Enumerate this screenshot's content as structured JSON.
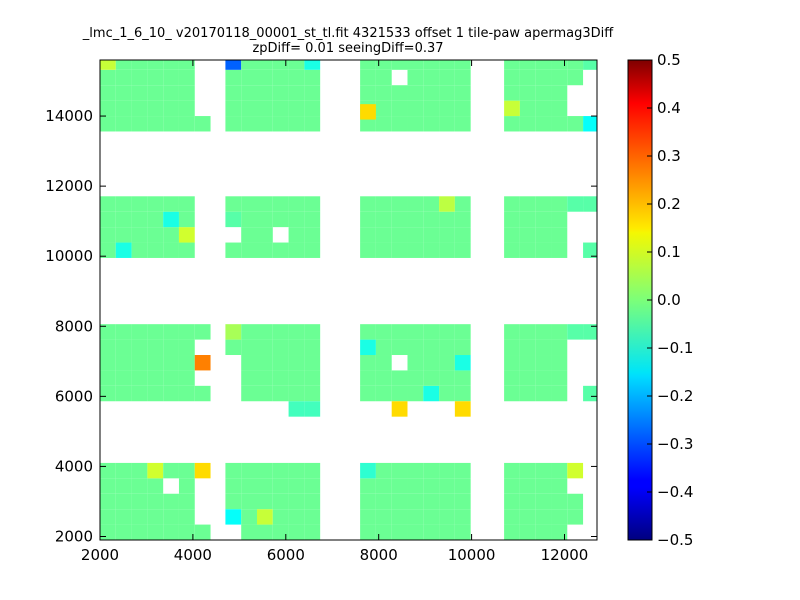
{
  "chart_data": {
    "type": "heatmap",
    "title_line1": "_lmc_1_6_10_ v20170118_00001_st_tl.fit 4321533 offset 1 tile-paw apermag3Diff",
    "title_line2": "zpDiff= 0.01 seeingDiff=0.37",
    "xlim": [
      2000,
      12700
    ],
    "ylim": [
      1900,
      15600
    ],
    "xticks": [
      2000,
      4000,
      6000,
      8000,
      10000,
      12000
    ],
    "yticks": [
      2000,
      4000,
      6000,
      8000,
      10000,
      12000,
      14000
    ],
    "cell_size": {
      "dx": 340,
      "dy": 440
    },
    "colorbar": {
      "range": [
        -0.5,
        0.5
      ],
      "ticks": [
        "0.5",
        "0.4",
        "0.3",
        "0.2",
        "0.1",
        "0.0",
        "−0.1",
        "−0.2",
        "−0.3",
        "−0.4",
        "−0.5"
      ]
    },
    "blocks": {
      "x_columns": [
        [
          2000,
          2340,
          2680,
          3020,
          3360,
          3700
        ],
        [
          4700,
          5040,
          5380,
          5720,
          6060,
          6400
        ],
        [
          7600,
          7940,
          8280,
          8620,
          8960,
          9300,
          9640
        ],
        [
          10700,
          11040,
          11380,
          11720
        ]
      ],
      "y_rows": [
        [
          1900,
          2340,
          2780,
          3220,
          3660
        ],
        [
          5860,
          6300,
          6740,
          7180,
          7620
        ],
        [
          9950,
          10390,
          10830,
          11270
        ],
        [
          13560,
          14000,
          14440,
          14880,
          15320
        ]
      ],
      "base_value": -0.02
    },
    "special_cells": [
      {
        "x": 4040,
        "y": 6740,
        "value": 0.25
      },
      {
        "x": 4040,
        "y": 3660,
        "value": 0.16
      },
      {
        "x": 8280,
        "y": 5420,
        "value": 0.16
      },
      {
        "x": 9640,
        "y": 5420,
        "value": 0.16
      },
      {
        "x": 7600,
        "y": 13900,
        "value": 0.16
      },
      {
        "x": 4700,
        "y": 15320,
        "value": -0.28
      },
      {
        "x": 3020,
        "y": 3660,
        "value": 0.08
      },
      {
        "x": 3700,
        "y": 10390,
        "value": 0.08
      },
      {
        "x": 12060,
        "y": 3660,
        "value": 0.08
      },
      {
        "x": 2000,
        "y": 15320,
        "value": 0.07
      },
      {
        "x": 10700,
        "y": 14000,
        "value": 0.07
      },
      {
        "x": 5380,
        "y": 2340,
        "value": 0.07
      },
      {
        "x": 9300,
        "y": 11270,
        "value": 0.06
      },
      {
        "x": 3360,
        "y": 10830,
        "value": -0.1
      },
      {
        "x": 7600,
        "y": 7180,
        "value": -0.1
      },
      {
        "x": 9640,
        "y": 6740,
        "value": -0.1
      },
      {
        "x": 8960,
        "y": 5860,
        "value": -0.1
      },
      {
        "x": 6400,
        "y": 15320,
        "value": -0.1
      },
      {
        "x": 12400,
        "y": 13560,
        "value": -0.12
      },
      {
        "x": 2340,
        "y": 9950,
        "value": -0.1
      },
      {
        "x": 4700,
        "y": 2340,
        "value": -0.12
      },
      {
        "x": 7600,
        "y": 3660,
        "value": -0.08
      },
      {
        "x": 4700,
        "y": 7620,
        "value": 0.04
      },
      {
        "x": 4700,
        "y": 10830,
        "value": -0.04
      },
      {
        "x": 12400,
        "y": 11270,
        "value": -0.04
      },
      {
        "x": 12400,
        "y": 9950,
        "value": -0.04
      },
      {
        "x": 12400,
        "y": 7620,
        "value": -0.04
      },
      {
        "x": 12400,
        "y": 5860,
        "value": -0.04
      },
      {
        "x": 6060,
        "y": 5420,
        "value": -0.06
      },
      {
        "x": 6400,
        "y": 5420,
        "value": -0.06
      },
      {
        "x": 12400,
        "y": 15320,
        "value": -0.04
      },
      {
        "x": 4040,
        "y": 13560,
        "value": -0.02
      },
      {
        "x": 12060,
        "y": 11270,
        "value": -0.04
      },
      {
        "x": 12060,
        "y": 7620,
        "value": -0.04
      },
      {
        "x": 12060,
        "y": 2780,
        "value": -0.02
      },
      {
        "x": 12060,
        "y": 2340,
        "value": -0.02
      },
      {
        "x": 12060,
        "y": 13560,
        "value": -0.02
      },
      {
        "x": 12060,
        "y": 15320,
        "value": -0.02
      },
      {
        "x": 12060,
        "y": 14880,
        "value": -0.02
      },
      {
        "x": 4040,
        "y": 5860,
        "value": -0.02
      },
      {
        "x": 4040,
        "y": 1900,
        "value": -0.02
      },
      {
        "x": 4040,
        "y": 7620,
        "value": -0.02
      }
    ],
    "missing_cells": [
      {
        "x": 5720,
        "y": 10390
      },
      {
        "x": 8280,
        "y": 14880
      },
      {
        "x": 8280,
        "y": 6740
      },
      {
        "x": 3360,
        "y": 3220
      },
      {
        "x": 4700,
        "y": 6740
      },
      {
        "x": 4700,
        "y": 6300
      },
      {
        "x": 4700,
        "y": 5860
      },
      {
        "x": 4700,
        "y": 1900
      },
      {
        "x": 6740,
        "y": 10390
      },
      {
        "x": 6740,
        "y": 10830
      },
      {
        "x": 4700,
        "y": 10390
      },
      {
        "x": 12060,
        "y": 1900
      },
      {
        "x": 12060,
        "y": 3220
      }
    ]
  }
}
